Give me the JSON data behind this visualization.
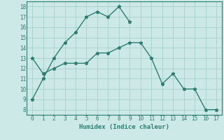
{
  "title": "",
  "xlabel": "Humidex (Indice chaleur)",
  "bg_color": "#cce9e7",
  "grid_color": "#aad4d0",
  "line_color": "#2e7d72",
  "xlim": [
    -0.5,
    17.5
  ],
  "ylim": [
    7.5,
    18.5
  ],
  "xticks": [
    0,
    1,
    2,
    3,
    4,
    5,
    6,
    7,
    8,
    9,
    10,
    11,
    12,
    13,
    14,
    15,
    16,
    17
  ],
  "yticks": [
    8,
    9,
    10,
    11,
    12,
    13,
    14,
    15,
    16,
    17,
    18
  ],
  "line1_x": [
    0,
    1,
    2,
    3,
    4,
    5,
    6,
    7,
    8,
    9
  ],
  "line1_y": [
    9,
    11,
    13,
    14.5,
    15.5,
    17,
    17.5,
    17,
    18,
    16.5
  ],
  "line2_x": [
    0,
    1,
    2,
    3,
    4,
    5,
    6,
    7,
    8,
    9,
    10,
    11,
    12,
    13,
    14,
    15,
    16,
    17
  ],
  "line2_y": [
    13,
    11.5,
    12,
    12.5,
    12.5,
    12.5,
    13.5,
    13.5,
    14,
    14.5,
    14.5,
    13,
    10.5,
    11.5,
    10,
    10,
    8,
    8
  ]
}
